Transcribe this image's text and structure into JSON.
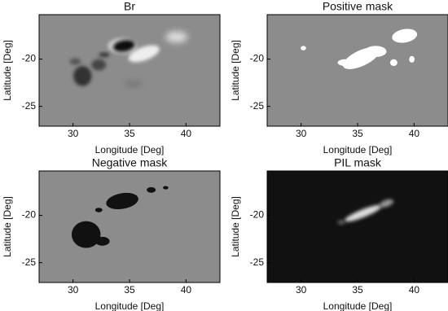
{
  "chart_data": [
    {
      "type": "image",
      "title": "Br",
      "x_label": "Longitude [Deg]",
      "y_label": "Latitude [Deg]",
      "xlim": [
        27,
        43
      ],
      "ylim": [
        -27.1,
        -15.3
      ],
      "xticks": [
        30,
        35,
        40
      ],
      "yticks": [
        -25,
        -20
      ],
      "color": "#8c8c8c"
    },
    {
      "type": "image",
      "title": "Positive mask",
      "x_label": "Longitude [Deg]",
      "y_label": "Latitude [Deg]",
      "xlim": [
        27,
        43
      ],
      "ylim": [
        -27.1,
        -15.3
      ],
      "xticks": [
        30,
        35,
        40
      ],
      "yticks": [
        -25,
        -20
      ],
      "color": "#8c8c8c"
    },
    {
      "type": "image",
      "title": "Negative mask",
      "x_label": "Longitude [Deg]",
      "y_label": "Latitude [Deg]",
      "xlim": [
        27,
        43
      ],
      "ylim": [
        -27.1,
        -15.3
      ],
      "xticks": [
        30,
        35,
        40
      ],
      "yticks": [
        -25,
        -20
      ],
      "color": "#8c8c8c"
    },
    {
      "type": "image",
      "title": "PIL mask",
      "x_label": "Longitude [Deg]",
      "y_label": "Latitude [Deg]",
      "xlim": [
        27,
        43
      ],
      "ylim": [
        -27.1,
        -15.3
      ],
      "xticks": [
        30,
        35,
        40
      ],
      "yticks": [
        -25,
        -20
      ],
      "color": "#111111"
    }
  ]
}
